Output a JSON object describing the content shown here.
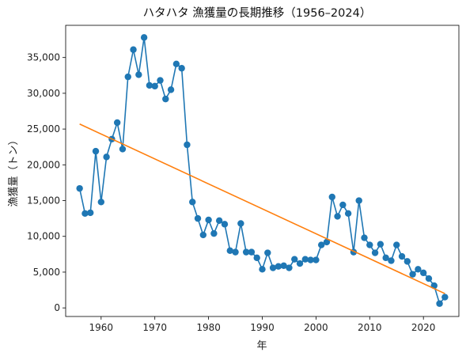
{
  "chart_data": {
    "type": "line",
    "title": "ハタハタ 漁獲量の長期推移（1956–2024）",
    "xlabel": "年",
    "ylabel": "漁獲量（トン）",
    "xlim": [
      1953.4,
      2026.6
    ],
    "ylim": [
      -1200,
      39500
    ],
    "xticks": [
      1960,
      1970,
      1980,
      1990,
      2000,
      2010,
      2020
    ],
    "yticks": [
      0,
      5000,
      10000,
      15000,
      20000,
      25000,
      30000,
      35000
    ],
    "ytick_labels": [
      "0",
      "5,000",
      "10,000",
      "15,000",
      "20,000",
      "25,000",
      "30,000",
      "35,000"
    ],
    "grid": false,
    "legend": "none",
    "series": [
      {
        "kind": "line-marker",
        "color": "#1f77b4",
        "x": [
          1956,
          1957,
          1958,
          1959,
          1960,
          1961,
          1962,
          1963,
          1964,
          1965,
          1966,
          1967,
          1968,
          1969,
          1970,
          1971,
          1972,
          1973,
          1974,
          1975,
          1976,
          1977,
          1978,
          1979,
          1980,
          1981,
          1982,
          1983,
          1984,
          1985,
          1986,
          1987,
          1988,
          1989,
          1990,
          1991,
          1992,
          1993,
          1994,
          1995,
          1996,
          1997,
          1998,
          1999,
          2000,
          2001,
          2002,
          2003,
          2004,
          2005,
          2006,
          2007,
          2008,
          2009,
          2010,
          2011,
          2012,
          2013,
          2014,
          2015,
          2016,
          2017,
          2018,
          2019,
          2020,
          2021,
          2022,
          2023,
          2024
        ],
        "values": [
          16700,
          13200,
          13300,
          21900,
          14800,
          21100,
          23600,
          25900,
          22200,
          32300,
          36100,
          32600,
          37800,
          31100,
          31000,
          31800,
          29200,
          30500,
          34100,
          33500,
          22800,
          14800,
          12500,
          10200,
          12300,
          10400,
          12200,
          11700,
          8000,
          7800,
          11800,
          7800,
          7800,
          7000,
          5400,
          7700,
          5600,
          5800,
          5900,
          5600,
          6800,
          6200,
          6800,
          6700,
          6700,
          8800,
          9200,
          15500,
          12800,
          14400,
          13200,
          7800,
          15000,
          9800,
          8800,
          7700,
          8900,
          7000,
          6600,
          8800,
          7200,
          6500,
          4700,
          5400,
          4900,
          4100,
          3100,
          600,
          1500
        ]
      },
      {
        "kind": "trend-line",
        "color": "#ff7f0e",
        "x": [
          1956,
          2024
        ],
        "values": [
          25700,
          2000
        ]
      }
    ]
  }
}
